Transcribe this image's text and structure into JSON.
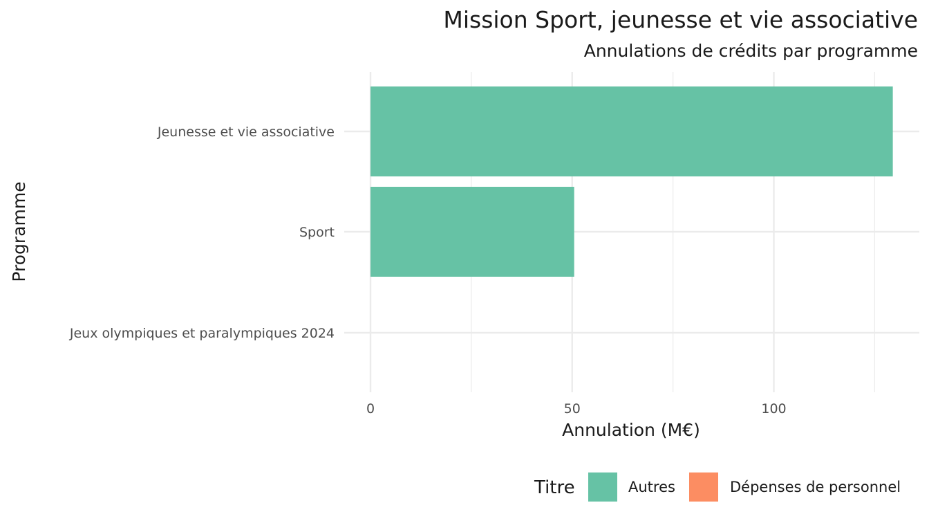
{
  "chart_data": {
    "type": "bar",
    "orientation": "horizontal",
    "title": "Mission Sport, jeunesse et vie associative",
    "subtitle": "Annulations de crédits par programme",
    "xlabel": "Annulation (M€)",
    "ylabel": "Programme",
    "xlim": [
      0,
      130
    ],
    "xticks": [
      0,
      50,
      100
    ],
    "xtick_labels": [
      "0",
      "50",
      "100"
    ],
    "categories": [
      "Jeunesse et vie associative",
      "Sport",
      "Jeux olympiques et paralympiques 2024"
    ],
    "series": [
      {
        "name": "Autres",
        "color": "#66c2a5",
        "values": [
          129.5,
          50.5,
          0
        ]
      },
      {
        "name": "Dépenses de personnel",
        "color": "#fc8d62",
        "values": [
          0,
          0,
          0
        ]
      }
    ],
    "legend": {
      "title": "Titre",
      "position": "bottom-right",
      "items": [
        "Autres",
        "Dépenses de personnel"
      ]
    },
    "grid": true
  }
}
